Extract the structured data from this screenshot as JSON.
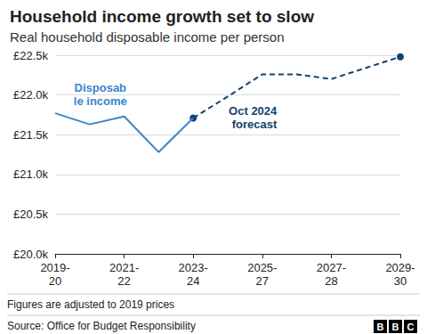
{
  "chart_data": {
    "type": "line",
    "title": "Household income growth set to slow",
    "subtitle": "Real household disposable income per person",
    "categories": [
      "2019-20",
      null,
      "2021-22",
      null,
      "2023-24",
      null,
      "2025-27",
      null,
      "2027-28",
      null,
      "2029-30"
    ],
    "series": [
      {
        "name": "Disposable income",
        "color": "#3a86c8",
        "line_style": "solid",
        "values": [
          21.77,
          21.63,
          21.73,
          21.28,
          21.71,
          null,
          null,
          null,
          null,
          null,
          null
        ]
      },
      {
        "name": "Oct 2024 forecast",
        "color": "#12436d",
        "line_style": "dashed",
        "marker": "circle",
        "values": [
          null,
          null,
          null,
          null,
          21.71,
          21.98,
          22.26,
          22.26,
          22.2,
          22.34,
          22.48
        ]
      }
    ],
    "ylim": [
      20,
      22.5
    ],
    "yticks": [
      {
        "value": 20,
        "label": "£20.0k"
      },
      {
        "value": 20.5,
        "label": "£20.5k"
      },
      {
        "value": 21,
        "label": "£21.0k"
      },
      {
        "value": 21.5,
        "label": "£21.5k"
      },
      {
        "value": 22,
        "label": "£22.0k"
      },
      {
        "value": 22.5,
        "label": "£22.5k"
      }
    ],
    "grid": true,
    "notes": [
      "Figures are adjusted to 2019 prices",
      "Source: Office for Budget Responsibility"
    ],
    "logo": "BBC"
  }
}
